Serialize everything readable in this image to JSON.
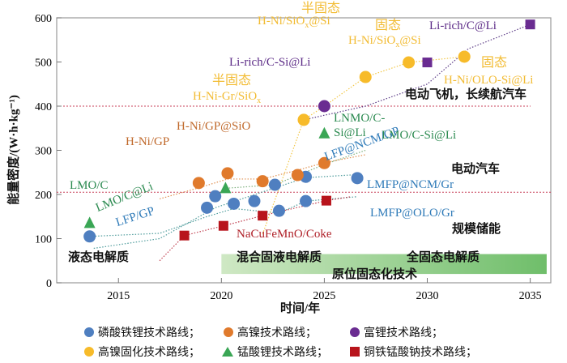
{
  "chart_data": {
    "type": "scatter",
    "xlabel": "时间/年",
    "ylabel": "能量密度/(W·h·kg⁻¹)",
    "xlim": [
      2012,
      2036
    ],
    "ylim": [
      0,
      600
    ],
    "xticks": [
      2015,
      2020,
      2025,
      2030,
      2035
    ],
    "yticks": [
      100,
      200,
      300,
      400,
      500,
      600
    ],
    "grid": false,
    "legend_placement": "bottom",
    "reference_lines": [
      400,
      205
    ],
    "series": [
      {
        "name": "磷酸铁锂技术路线；",
        "marker": "circle",
        "color": "#4f7fc0",
        "points": [
          [
            2013.6,
            105
          ],
          [
            2019.3,
            170
          ],
          [
            2019.7,
            196
          ],
          [
            2020.6,
            179
          ],
          [
            2021.6,
            185
          ],
          [
            2022.6,
            222
          ],
          [
            2022.8,
            163
          ],
          [
            2024.1,
            240
          ],
          [
            2024.1,
            185
          ],
          [
            2026.6,
            237
          ]
        ]
      },
      {
        "name": "高镍技术路线；",
        "marker": "circle",
        "color": "#e07a2c",
        "points": [
          [
            2018.9,
            226
          ],
          [
            2020.3,
            248
          ],
          [
            2022.0,
            230
          ],
          [
            2023.7,
            244
          ],
          [
            2025.0,
            271
          ]
        ]
      },
      {
        "name": "富锂技术路线；",
        "marker": "circle",
        "color": "#6a2c91",
        "points": [
          [
            2025.0,
            400
          ]
        ]
      },
      {
        "name": "富锂技术路线；",
        "marker": "square",
        "color": "#6a2c91",
        "legend": false,
        "points": [
          [
            2030.0,
            499
          ],
          [
            2035.0,
            585
          ]
        ]
      },
      {
        "name": "高镍固化技术路线；",
        "marker": "circle",
        "color": "#f7bb2a",
        "points": [
          [
            2024.0,
            369
          ],
          [
            2027.0,
            466
          ],
          [
            2029.1,
            499
          ],
          [
            2031.8,
            512
          ]
        ]
      },
      {
        "name": "锰酸锂技术路线；",
        "marker": "triangle",
        "color": "#3aa655",
        "points": [
          [
            2013.6,
            135
          ],
          [
            2020.2,
            214
          ],
          [
            2025.0,
            338
          ]
        ]
      },
      {
        "name": "铜铁锰酸钠技术路线；",
        "marker": "square",
        "color": "#b8141c",
        "points": [
          [
            2018.2,
            107
          ],
          [
            2020.1,
            129
          ],
          [
            2022.0,
            152
          ],
          [
            2025.1,
            186
          ]
        ]
      }
    ],
    "annotations": {
      "semi1_a": "半固态",
      "semi1_b1": "H-Ni/SiO",
      "semi1_sub": "x",
      "semi1_b2": "@Si",
      "lirich_csi": "Li-rich/C-Si@Li",
      "semi2_a": "半固态",
      "semi2_b1": "H-Ni-Gr/SiO",
      "semi2_sub": "x",
      "hni_gp_sio": "H-Ni/GP@SiO",
      "hni_gp": "H-Ni/GP",
      "solid1_a": "固态",
      "solid1_b1": "H-Ni/SiO",
      "solid1_sub": "x",
      "solid1_b2": "@Si",
      "lirich_c": "Li-rich/C@Li",
      "solid2_a": "固态",
      "solid2_b": "H-Ni/OLO-Si@Li",
      "lnmo_a": "LNMO/C-",
      "lnmo_b": "Si@Li",
      "lmo_csi": "LMO/C-Si@Li",
      "lfp_ncm": "LFP@NCM/GP",
      "lmfp_ncm": "LMFP@NCM/Gr",
      "lmfp_olo": "LMFP@OLO/Gr",
      "lmo_c": "LMO/C",
      "lmo_cli": "LMO/C@Li",
      "lfp_gp": "LFP/GP",
      "na": "NaCuFeMnO/Coke"
    },
    "regions": {
      "aircraft": "电动飞机，长续航汽车",
      "ev": "电动汽车",
      "storage": "规模储能",
      "liquid": "液态电解质",
      "hybrid": "混合固液电解质",
      "allsolid": "全固态电解质",
      "insitu": "原位固态化技术"
    }
  }
}
